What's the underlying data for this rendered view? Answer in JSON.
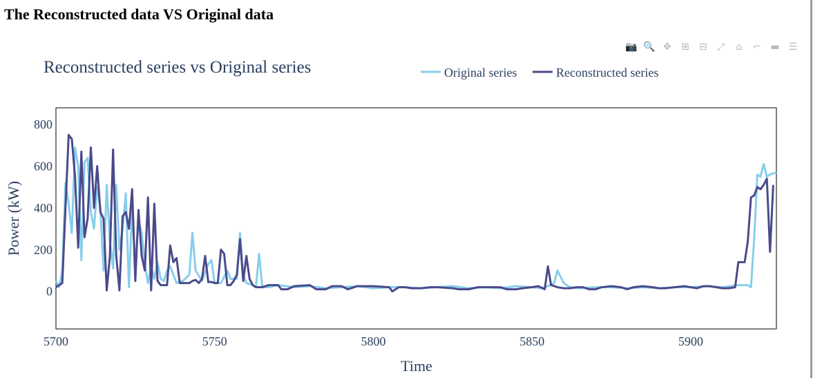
{
  "page": {
    "heading": "The Reconstructed data VS Original data"
  },
  "modebar": [
    {
      "name": "camera-icon",
      "glyph": "📷"
    },
    {
      "name": "zoom-icon",
      "glyph": "🔍"
    },
    {
      "name": "pan-icon",
      "glyph": "✥"
    },
    {
      "name": "zoom-in-icon",
      "glyph": "⊞"
    },
    {
      "name": "zoom-out-icon",
      "glyph": "⊟"
    },
    {
      "name": "autoscale-icon",
      "glyph": "⤢"
    },
    {
      "name": "reset-axes-icon",
      "glyph": "⌂"
    },
    {
      "name": "spike-lines-icon",
      "glyph": "⌐"
    },
    {
      "name": "hover-closest-icon",
      "glyph": "▬"
    },
    {
      "name": "hover-compare-icon",
      "glyph": "☰"
    }
  ],
  "colors": {
    "original": "#87ceeb",
    "reconstructed": "#4a4a8a",
    "text": "#2a3f5f"
  },
  "chart_data": {
    "type": "line",
    "title": "Reconstructed series vs Original series",
    "xlabel": "Time",
    "ylabel": "Power (kW)",
    "xlim": [
      5700,
      5927
    ],
    "ylim": [
      -180,
      880
    ],
    "xticks": [
      5700,
      5750,
      5800,
      5850,
      5900
    ],
    "yticks": [
      0,
      200,
      400,
      600,
      800
    ],
    "legend_position": "top-right",
    "grid": false,
    "series": [
      {
        "name": "Original series",
        "color": "#87ceeb",
        "points": [
          [
            5700,
            50
          ],
          [
            5701,
            20
          ],
          [
            5702,
            100
          ],
          [
            5703,
            520
          ],
          [
            5704,
            420
          ],
          [
            5705,
            280
          ],
          [
            5706,
            690
          ],
          [
            5707,
            600
          ],
          [
            5708,
            150
          ],
          [
            5709,
            620
          ],
          [
            5710,
            640
          ],
          [
            5711,
            380
          ],
          [
            5712,
            300
          ],
          [
            5713,
            500
          ],
          [
            5714,
            400
          ],
          [
            5715,
            100
          ],
          [
            5716,
            510
          ],
          [
            5717,
            240
          ],
          [
            5718,
            110
          ],
          [
            5719,
            510
          ],
          [
            5720,
            200
          ],
          [
            5721,
            300
          ],
          [
            5722,
            470
          ],
          [
            5723,
            20
          ],
          [
            5724,
            400
          ],
          [
            5725,
            120
          ],
          [
            5726,
            340
          ],
          [
            5727,
            280
          ],
          [
            5728,
            130
          ],
          [
            5729,
            40
          ],
          [
            5730,
            120
          ],
          [
            5731,
            60
          ],
          [
            5732,
            140
          ],
          [
            5733,
            60
          ],
          [
            5734,
            50
          ],
          [
            5735,
            100
          ],
          [
            5736,
            120
          ],
          [
            5737,
            80
          ],
          [
            5738,
            40
          ],
          [
            5740,
            50
          ],
          [
            5742,
            80
          ],
          [
            5743,
            280
          ],
          [
            5744,
            100
          ],
          [
            5746,
            50
          ],
          [
            5748,
            130
          ],
          [
            5749,
            150
          ],
          [
            5750,
            40
          ],
          [
            5752,
            40
          ],
          [
            5754,
            100
          ],
          [
            5755,
            60
          ],
          [
            5757,
            60
          ],
          [
            5758,
            280
          ],
          [
            5759,
            80
          ],
          [
            5760,
            40
          ],
          [
            5762,
            30
          ],
          [
            5763,
            20
          ],
          [
            5764,
            180
          ],
          [
            5765,
            20
          ],
          [
            5767,
            20
          ],
          [
            5770,
            30
          ],
          [
            5775,
            20
          ],
          [
            5780,
            25
          ],
          [
            5785,
            15
          ],
          [
            5790,
            20
          ],
          [
            5795,
            25
          ],
          [
            5800,
            15
          ],
          [
            5805,
            20
          ],
          [
            5810,
            20
          ],
          [
            5815,
            15
          ],
          [
            5820,
            20
          ],
          [
            5825,
            25
          ],
          [
            5830,
            15
          ],
          [
            5835,
            20
          ],
          [
            5840,
            15
          ],
          [
            5845,
            25
          ],
          [
            5850,
            20
          ],
          [
            5853,
            15
          ],
          [
            5855,
            25
          ],
          [
            5857,
            40
          ],
          [
            5858,
            100
          ],
          [
            5860,
            40
          ],
          [
            5862,
            20
          ],
          [
            5865,
            15
          ],
          [
            5870,
            20
          ],
          [
            5875,
            20
          ],
          [
            5880,
            15
          ],
          [
            5885,
            20
          ],
          [
            5890,
            15
          ],
          [
            5895,
            20
          ],
          [
            5900,
            20
          ],
          [
            5905,
            25
          ],
          [
            5910,
            20
          ],
          [
            5915,
            30
          ],
          [
            5918,
            30
          ],
          [
            5919,
            20
          ],
          [
            5920,
            250
          ],
          [
            5921,
            560
          ],
          [
            5922,
            550
          ],
          [
            5923,
            610
          ],
          [
            5924,
            550
          ],
          [
            5925,
            560
          ],
          [
            5927,
            570
          ]
        ]
      },
      {
        "name": "Reconstructed series",
        "color": "#4a4a8a",
        "points": [
          [
            5700,
            20
          ],
          [
            5701,
            30
          ],
          [
            5702,
            40
          ],
          [
            5703,
            400
          ],
          [
            5704,
            750
          ],
          [
            5705,
            730
          ],
          [
            5706,
            550
          ],
          [
            5707,
            210
          ],
          [
            5708,
            670
          ],
          [
            5709,
            260
          ],
          [
            5710,
            350
          ],
          [
            5711,
            690
          ],
          [
            5712,
            400
          ],
          [
            5713,
            600
          ],
          [
            5714,
            380
          ],
          [
            5715,
            350
          ],
          [
            5716,
            5
          ],
          [
            5717,
            170
          ],
          [
            5718,
            680
          ],
          [
            5719,
            170
          ],
          [
            5720,
            5
          ],
          [
            5721,
            360
          ],
          [
            5722,
            380
          ],
          [
            5723,
            300
          ],
          [
            5724,
            490
          ],
          [
            5725,
            50
          ],
          [
            5726,
            390
          ],
          [
            5727,
            170
          ],
          [
            5728,
            100
          ],
          [
            5729,
            450
          ],
          [
            5730,
            5
          ],
          [
            5731,
            420
          ],
          [
            5732,
            50
          ],
          [
            5733,
            30
          ],
          [
            5734,
            30
          ],
          [
            5735,
            30
          ],
          [
            5736,
            220
          ],
          [
            5737,
            140
          ],
          [
            5738,
            160
          ],
          [
            5739,
            40
          ],
          [
            5740,
            40
          ],
          [
            5742,
            40
          ],
          [
            5743,
            50
          ],
          [
            5744,
            55
          ],
          [
            5745,
            40
          ],
          [
            5746,
            60
          ],
          [
            5747,
            170
          ],
          [
            5748,
            45
          ],
          [
            5749,
            45
          ],
          [
            5750,
            40
          ],
          [
            5751,
            40
          ],
          [
            5752,
            200
          ],
          [
            5753,
            180
          ],
          [
            5754,
            30
          ],
          [
            5755,
            30
          ],
          [
            5756,
            50
          ],
          [
            5757,
            80
          ],
          [
            5758,
            250
          ],
          [
            5759,
            50
          ],
          [
            5760,
            170
          ],
          [
            5761,
            60
          ],
          [
            5762,
            30
          ],
          [
            5763,
            20
          ],
          [
            5765,
            20
          ],
          [
            5767,
            30
          ],
          [
            5770,
            30
          ],
          [
            5771,
            10
          ],
          [
            5773,
            10
          ],
          [
            5775,
            25
          ],
          [
            5780,
            30
          ],
          [
            5782,
            10
          ],
          [
            5785,
            10
          ],
          [
            5787,
            25
          ],
          [
            5790,
            25
          ],
          [
            5792,
            10
          ],
          [
            5795,
            25
          ],
          [
            5800,
            25
          ],
          [
            5805,
            20
          ],
          [
            5806,
            0
          ],
          [
            5808,
            20
          ],
          [
            5810,
            20
          ],
          [
            5812,
            15
          ],
          [
            5815,
            15
          ],
          [
            5818,
            20
          ],
          [
            5820,
            20
          ],
          [
            5825,
            15
          ],
          [
            5827,
            10
          ],
          [
            5830,
            10
          ],
          [
            5833,
            20
          ],
          [
            5835,
            20
          ],
          [
            5840,
            20
          ],
          [
            5842,
            10
          ],
          [
            5845,
            10
          ],
          [
            5847,
            15
          ],
          [
            5850,
            20
          ],
          [
            5852,
            25
          ],
          [
            5854,
            10
          ],
          [
            5855,
            120
          ],
          [
            5856,
            30
          ],
          [
            5858,
            20
          ],
          [
            5860,
            15
          ],
          [
            5862,
            15
          ],
          [
            5864,
            20
          ],
          [
            5866,
            20
          ],
          [
            5868,
            10
          ],
          [
            5870,
            10
          ],
          [
            5872,
            20
          ],
          [
            5875,
            25
          ],
          [
            5878,
            20
          ],
          [
            5880,
            10
          ],
          [
            5882,
            20
          ],
          [
            5885,
            25
          ],
          [
            5888,
            20
          ],
          [
            5890,
            15
          ],
          [
            5892,
            15
          ],
          [
            5895,
            20
          ],
          [
            5898,
            25
          ],
          [
            5900,
            20
          ],
          [
            5902,
            15
          ],
          [
            5904,
            25
          ],
          [
            5906,
            25
          ],
          [
            5908,
            20
          ],
          [
            5910,
            15
          ],
          [
            5912,
            15
          ],
          [
            5914,
            20
          ],
          [
            5915,
            140
          ],
          [
            5917,
            140
          ],
          [
            5918,
            240
          ],
          [
            5919,
            450
          ],
          [
            5920,
            460
          ],
          [
            5921,
            500
          ],
          [
            5922,
            490
          ],
          [
            5923,
            510
          ],
          [
            5924,
            540
          ],
          [
            5925,
            190
          ],
          [
            5926,
            510
          ]
        ]
      }
    ]
  }
}
